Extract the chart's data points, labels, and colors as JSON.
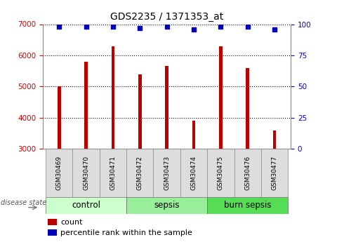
{
  "title": "GDS2235 / 1371353_at",
  "samples": [
    "GSM30469",
    "GSM30470",
    "GSM30471",
    "GSM30472",
    "GSM30473",
    "GSM30474",
    "GSM30475",
    "GSM30476",
    "GSM30477"
  ],
  "counts": [
    5000,
    5800,
    6300,
    5400,
    5650,
    3900,
    6300,
    5600,
    3580
  ],
  "percentiles": [
    98,
    98,
    98,
    97,
    98,
    96,
    98,
    98,
    96
  ],
  "ylim": [
    3000,
    7000
  ],
  "yticks": [
    3000,
    4000,
    5000,
    6000,
    7000
  ],
  "right_yticks": [
    0,
    25,
    50,
    75,
    100
  ],
  "groups": [
    {
      "label": "control",
      "samples": [
        0,
        1,
        2
      ],
      "color": "#ccffcc"
    },
    {
      "label": "sepsis",
      "samples": [
        3,
        4,
        5
      ],
      "color": "#99ee99"
    },
    {
      "label": "burn sepsis",
      "samples": [
        6,
        7,
        8
      ],
      "color": "#55dd55"
    }
  ],
  "bar_color": "#bb0000",
  "dot_color": "#0000bb",
  "bar_width": 0.12,
  "title_fontsize": 10,
  "tick_fontsize": 7.5,
  "sample_fontsize": 6.5,
  "group_label_fontsize": 8.5,
  "disease_state_label": "disease state",
  "legend_count_label": "count",
  "legend_percentile_label": "percentile rank within the sample",
  "background_color": "#ffffff",
  "plot_bg_color": "#ffffff",
  "grid_color": "#000000",
  "left_tick_color": "#cc0000",
  "right_tick_color": "#0000cc"
}
